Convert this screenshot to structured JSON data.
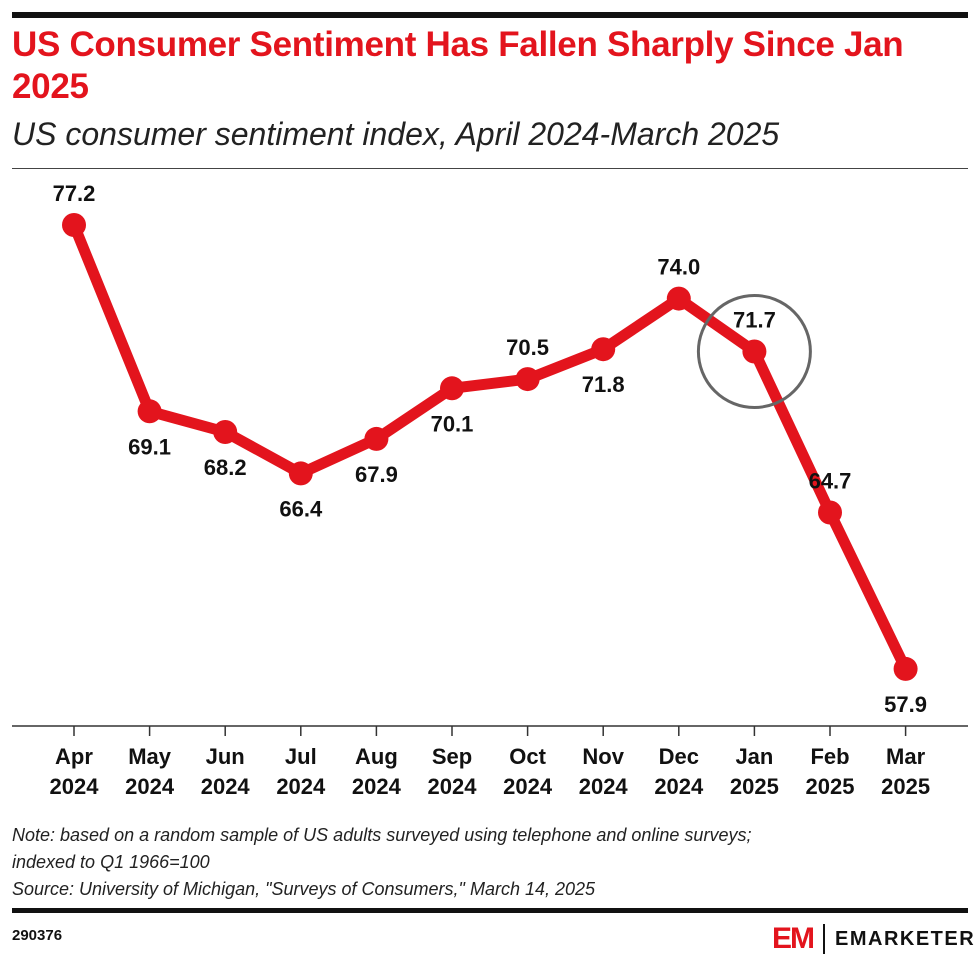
{
  "title": "US Consumer Sentiment Has Fallen Sharply Since Jan 2025",
  "subtitle": "US consumer sentiment index, April 2024-March 2025",
  "chart_data": {
    "type": "line",
    "categories": [
      [
        "Apr",
        "2024"
      ],
      [
        "May",
        "2024"
      ],
      [
        "Jun",
        "2024"
      ],
      [
        "Jul",
        "2024"
      ],
      [
        "Aug",
        "2024"
      ],
      [
        "Sep",
        "2024"
      ],
      [
        "Oct",
        "2024"
      ],
      [
        "Nov",
        "2024"
      ],
      [
        "Dec",
        "2024"
      ],
      [
        "Jan",
        "2025"
      ],
      [
        "Feb",
        "2025"
      ],
      [
        "Mar",
        "2025"
      ]
    ],
    "values": [
      77.2,
      69.1,
      68.2,
      66.4,
      67.9,
      70.1,
      70.5,
      71.8,
      74.0,
      71.7,
      64.7,
      57.9
    ],
    "data_labels": [
      "77.2",
      "69.1",
      "68.2",
      "66.4",
      "67.9",
      "70.1",
      "70.5",
      "71.8",
      "74.0",
      "71.7",
      "64.7",
      "57.9"
    ],
    "label_positions": [
      "above",
      "below",
      "below",
      "below",
      "below",
      "below",
      "above",
      "below",
      "above",
      "above",
      "above",
      "below"
    ],
    "highlight": {
      "category_index": 9,
      "shape": "circle",
      "color": "#666666"
    },
    "line_color": "#e3141d",
    "grid": false,
    "legend": "none"
  },
  "notes": {
    "note_line1": "Note: based on a random sample of US adults surveyed using telephone and online surveys;",
    "note_line2": "indexed to Q1 1966=100",
    "source": "Source: University of Michigan, \"Surveys of Consumers,\" March 14, 2025"
  },
  "footer": {
    "id": "290376",
    "logo_mark": "EM",
    "logo_text": "EMARKETER"
  }
}
